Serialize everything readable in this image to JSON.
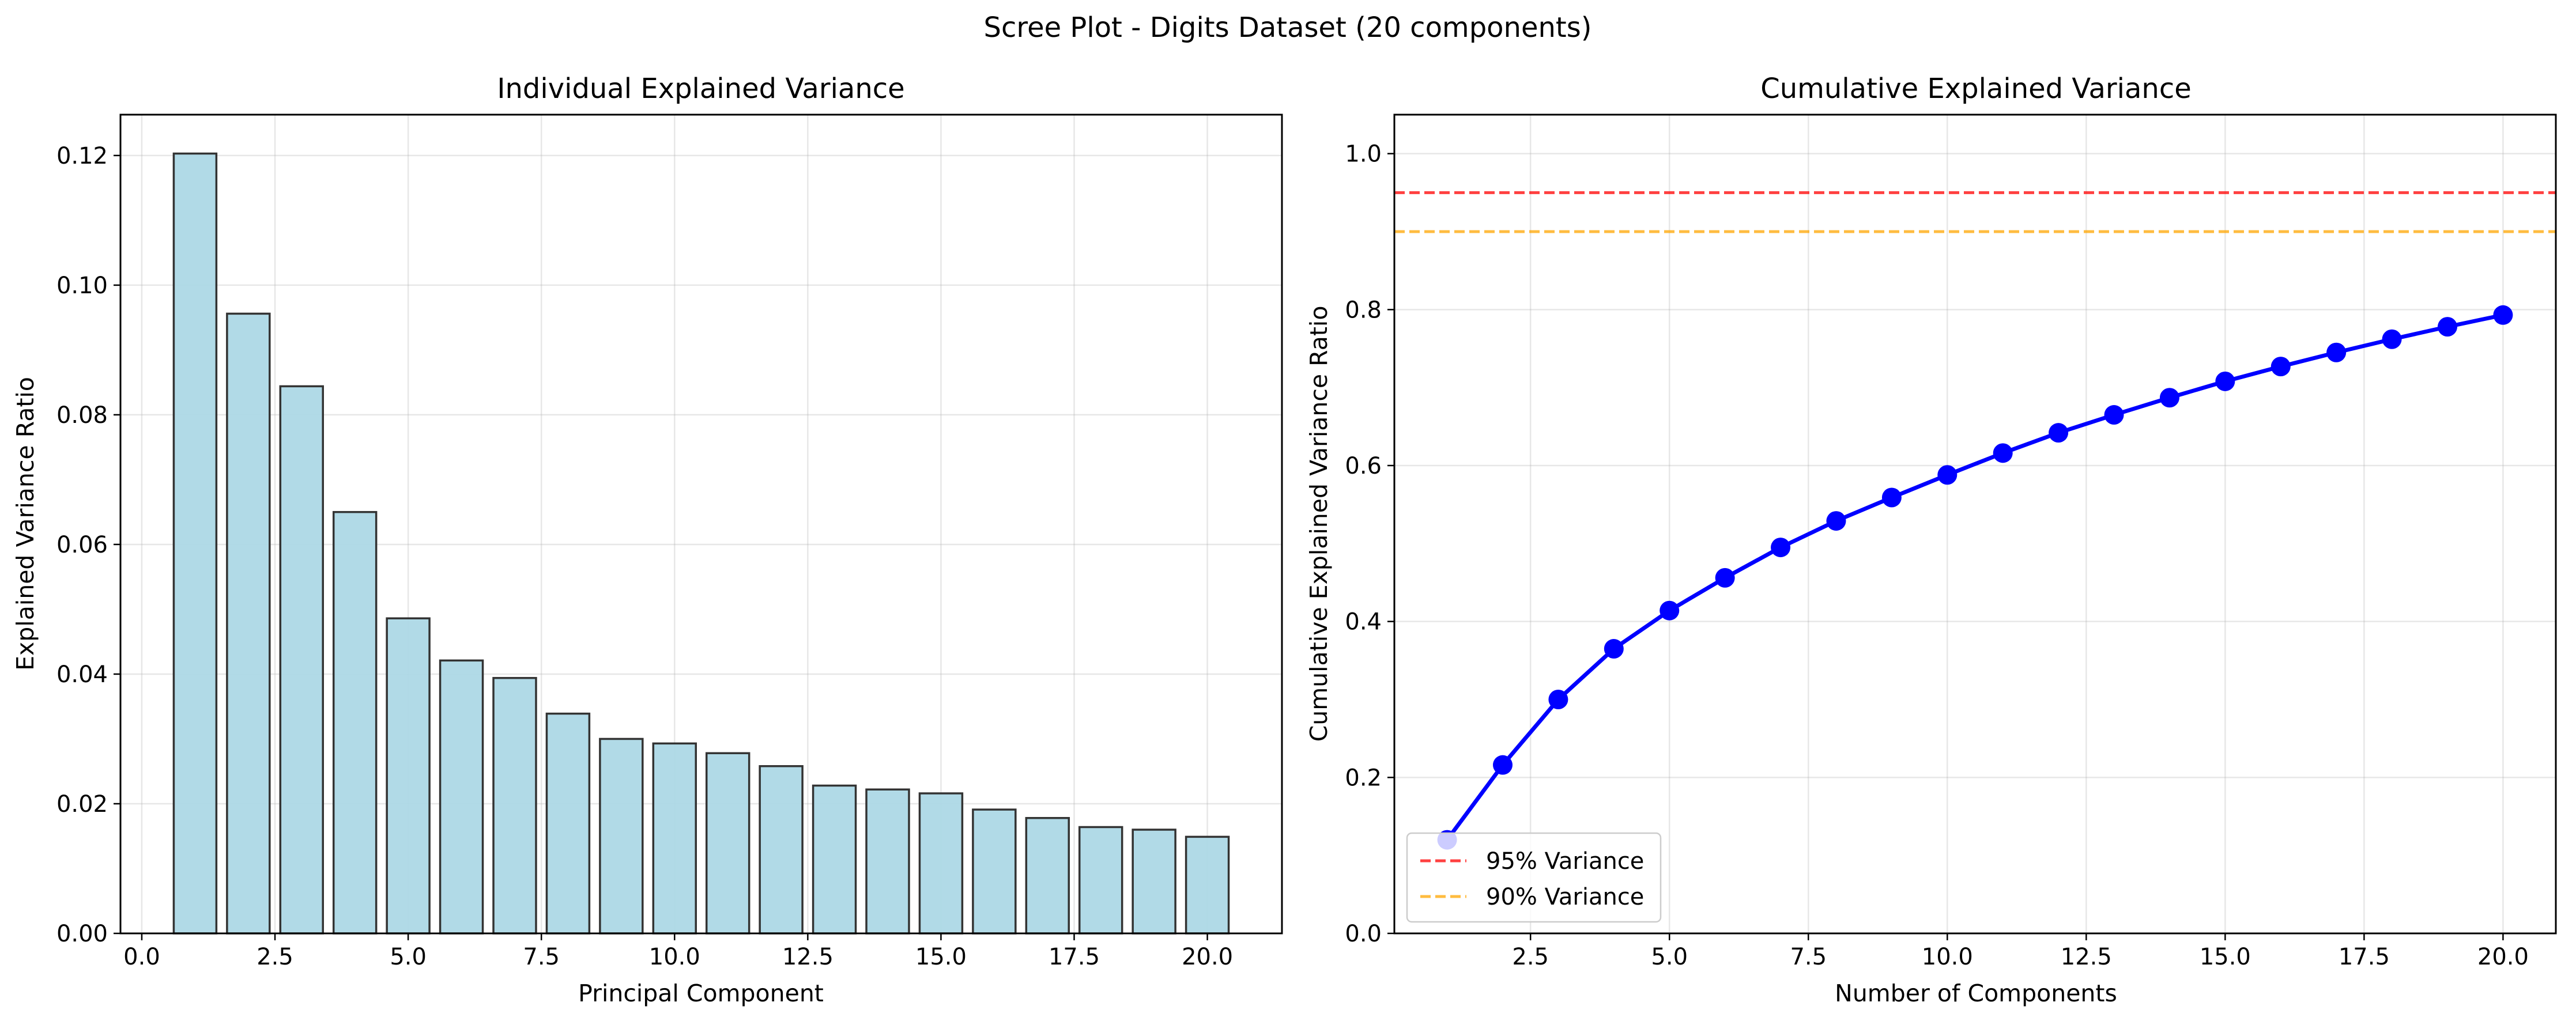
{
  "figure": {
    "suptitle": "Scree Plot - Digits Dataset (20 components)"
  },
  "chart_data": [
    {
      "type": "bar",
      "title": "Individual Explained Variance",
      "xlabel": "Principal Component",
      "ylabel": "Explained Variance Ratio",
      "x": [
        1,
        2,
        3,
        4,
        5,
        6,
        7,
        8,
        9,
        10,
        11,
        12,
        13,
        14,
        15,
        16,
        17,
        18,
        19,
        20
      ],
      "values": [
        0.1203,
        0.0956,
        0.0844,
        0.065,
        0.0486,
        0.0421,
        0.0394,
        0.0339,
        0.03,
        0.0293,
        0.0278,
        0.0258,
        0.0228,
        0.0222,
        0.0216,
        0.0191,
        0.0178,
        0.0164,
        0.016,
        0.0149
      ],
      "xlim": [
        -0.4,
        21.4
      ],
      "ylim": [
        0,
        0.1263
      ],
      "xticks": [
        0.0,
        2.5,
        5.0,
        7.5,
        10.0,
        12.5,
        15.0,
        17.5,
        20.0
      ],
      "xtick_labels": [
        "0.0",
        "2.5",
        "5.0",
        "7.5",
        "10.0",
        "12.5",
        "15.0",
        "17.5",
        "20.0"
      ],
      "yticks": [
        0.0,
        0.02,
        0.04,
        0.06,
        0.08,
        0.1,
        0.12
      ],
      "ytick_labels": [
        "0.00",
        "0.02",
        "0.04",
        "0.06",
        "0.08",
        "0.10",
        "0.12"
      ],
      "grid": true,
      "bar_color": "#add8e6",
      "edge_color": "#333333"
    },
    {
      "type": "line",
      "title": "Cumulative Explained Variance",
      "xlabel": "Number of Components",
      "ylabel": "Cumulative Explained Variance Ratio",
      "x": [
        1,
        2,
        3,
        4,
        5,
        6,
        7,
        8,
        9,
        10,
        11,
        12,
        13,
        14,
        15,
        16,
        17,
        18,
        19,
        20
      ],
      "values": [
        0.12,
        0.216,
        0.3,
        0.365,
        0.414,
        0.456,
        0.495,
        0.529,
        0.559,
        0.588,
        0.616,
        0.642,
        0.665,
        0.687,
        0.708,
        0.727,
        0.745,
        0.762,
        0.778,
        0.793
      ],
      "xlim": [
        0.05,
        20.95
      ],
      "ylim": [
        0,
        1.05
      ],
      "xticks": [
        2.5,
        5.0,
        7.5,
        10.0,
        12.5,
        15.0,
        17.5,
        20.0
      ],
      "xtick_labels": [
        "2.5",
        "5.0",
        "7.5",
        "10.0",
        "12.5",
        "15.0",
        "17.5",
        "20.0"
      ],
      "yticks": [
        0.0,
        0.2,
        0.4,
        0.6,
        0.8,
        1.0
      ],
      "ytick_labels": [
        "0.0",
        "0.2",
        "0.4",
        "0.6",
        "0.8",
        "1.0"
      ],
      "grid": true,
      "line_color": "#0000ff",
      "reference_lines": [
        {
          "name": "95% Variance",
          "y": 0.95,
          "color": "#ff0000"
        },
        {
          "name": "90% Variance",
          "y": 0.9,
          "color": "#ffa500"
        }
      ],
      "legend_position": "lower-left"
    }
  ]
}
